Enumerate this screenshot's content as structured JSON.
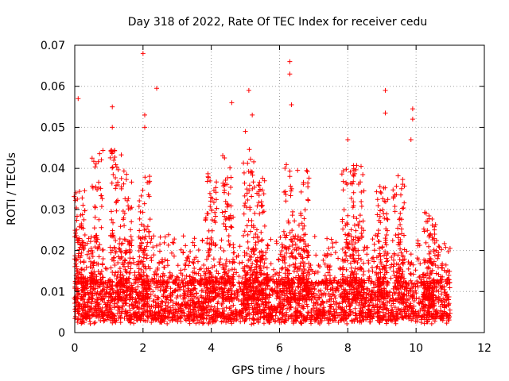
{
  "chart_data": {
    "type": "scatter",
    "title": "Day 318 of 2022, Rate Of TEC Index for receiver cedu",
    "xlabel": "GPS time / hours",
    "ylabel": "ROTI / TECUs",
    "xlim": [
      0,
      12
    ],
    "ylim": [
      0,
      0.07
    ],
    "x_ticks": [
      "0",
      "2",
      "4",
      "6",
      "8",
      "10",
      "12"
    ],
    "y_ticks": [
      "0",
      "0.01",
      "0.02",
      "0.03",
      "0.04",
      "0.05",
      "0.06",
      "0.07"
    ],
    "grid": true,
    "marker": "+",
    "color": "#ff0000",
    "series": [
      {
        "name": "ROTI",
        "x_range_hours": [
          0,
          11
        ],
        "typical_band": [
          0.002,
          0.012
        ],
        "notable_points": [
          {
            "x": 0.1,
            "y": 0.057
          },
          {
            "x": 1.1,
            "y": 0.055
          },
          {
            "x": 1.1,
            "y": 0.05
          },
          {
            "x": 2.0,
            "y": 0.068
          },
          {
            "x": 2.05,
            "y": 0.053
          },
          {
            "x": 2.05,
            "y": 0.05
          },
          {
            "x": 2.4,
            "y": 0.0595
          },
          {
            "x": 4.6,
            "y": 0.056
          },
          {
            "x": 5.0,
            "y": 0.049
          },
          {
            "x": 5.1,
            "y": 0.059
          },
          {
            "x": 5.2,
            "y": 0.053
          },
          {
            "x": 6.3,
            "y": 0.066
          },
          {
            "x": 6.3,
            "y": 0.063
          },
          {
            "x": 6.35,
            "y": 0.0555
          },
          {
            "x": 8.0,
            "y": 0.047
          },
          {
            "x": 9.1,
            "y": 0.059
          },
          {
            "x": 9.1,
            "y": 0.0535
          },
          {
            "x": 9.9,
            "y": 0.0545
          },
          {
            "x": 9.9,
            "y": 0.052
          },
          {
            "x": 9.85,
            "y": 0.047
          }
        ],
        "active_periods": [
          {
            "center": 0.15,
            "peak": 0.036
          },
          {
            "center": 0.65,
            "peak": 0.045
          },
          {
            "center": 1.2,
            "peak": 0.046
          },
          {
            "center": 1.5,
            "peak": 0.04
          },
          {
            "center": 2.05,
            "peak": 0.04
          },
          {
            "center": 4.0,
            "peak": 0.04
          },
          {
            "center": 4.5,
            "peak": 0.045
          },
          {
            "center": 5.1,
            "peak": 0.045
          },
          {
            "center": 5.4,
            "peak": 0.038
          },
          {
            "center": 6.3,
            "peak": 0.041
          },
          {
            "center": 6.7,
            "peak": 0.04
          },
          {
            "center": 8.0,
            "peak": 0.04
          },
          {
            "center": 8.3,
            "peak": 0.041
          },
          {
            "center": 9.0,
            "peak": 0.036
          },
          {
            "center": 9.5,
            "peak": 0.04
          },
          {
            "center": 10.4,
            "peak": 0.03
          }
        ]
      }
    ]
  }
}
